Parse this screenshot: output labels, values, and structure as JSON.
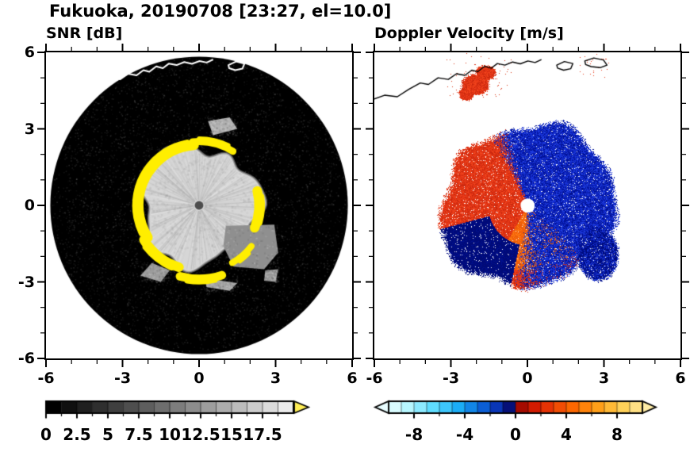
{
  "title": "Fukuoka, 20190708 [23:27, el=10.0]",
  "panels": {
    "snr": {
      "subtitle": "SNR [dB]"
    },
    "doppler": {
      "subtitle": "Doppler Velocity [m/s]"
    }
  },
  "axes": {
    "x_range": [
      -6,
      6
    ],
    "y_range": [
      -6,
      6
    ],
    "x_major_ticks": [
      -6,
      -3,
      0,
      3,
      6
    ],
    "y_major_ticks": [
      6,
      3,
      0,
      -3,
      -6
    ],
    "x_major_labels": [
      "-6",
      "-3",
      "0",
      "3",
      "6"
    ],
    "y_major_labels": [
      "6",
      "3",
      "0",
      "-3",
      "-6"
    ],
    "minor_tick_step": 1
  },
  "colorbars": {
    "snr": {
      "range": [
        0,
        20
      ],
      "segments": 16,
      "major_tick_values": [
        0,
        2.5,
        5,
        7.5,
        10,
        12.5,
        15,
        17.5
      ],
      "major_tick_labels": [
        "0",
        "2.5",
        "5",
        "7.5",
        "10",
        "12.5",
        "15",
        "17.5"
      ],
      "minor_tick_step": 1.25,
      "ramp": [
        "#000000",
        "#ebebeb"
      ],
      "over_arrow_color": "#ffee55"
    },
    "doppler": {
      "range": [
        -10,
        10
      ],
      "segments": 20,
      "major_tick_values": [
        -8,
        -4,
        0,
        4,
        8
      ],
      "major_tick_labels": [
        "-8",
        "-4",
        "0",
        "4",
        "8"
      ],
      "minor_tick_step": 2,
      "stops": [
        [
          0,
          "#eaffff"
        ],
        [
          0.08,
          "#b4f6ff"
        ],
        [
          0.18,
          "#5bdcff"
        ],
        [
          0.28,
          "#18aaf6"
        ],
        [
          0.37,
          "#0b62d8"
        ],
        [
          0.45,
          "#0a22a8"
        ],
        [
          0.497,
          "#03004e"
        ],
        [
          0.503,
          "#8c0600"
        ],
        [
          0.56,
          "#cd1400"
        ],
        [
          0.64,
          "#ea3a06"
        ],
        [
          0.74,
          "#ff6f00"
        ],
        [
          0.84,
          "#ffa81e"
        ],
        [
          0.93,
          "#ffd35c"
        ],
        [
          1,
          "#ffe79a"
        ]
      ],
      "under_arrow_color": "#e8fdff",
      "over_arrow_color": "#ffeda6"
    }
  },
  "chart_data": {
    "type": "heatmap",
    "subtype": "weather_radar_ppi_pair",
    "site": "Fukuoka",
    "date": "20190708",
    "time": "23:27",
    "elevation_deg": 10.0,
    "panels": [
      {
        "title": "SNR [dB]",
        "colormap": "grayscale 0-17.5 dB, yellow = over-range",
        "features": {
          "scan_disc_radius": 5.83,
          "background": "black (no echo / noise floor)",
          "echo_core": "light-gray disk, radius ~2.3, SNR ~12-17.5 dB",
          "saturated_ring": "yellow arcs at radius ~2.3-2.9 (SNR above scale max)",
          "secondary_echo": "medium-gray patch around (1.0..3.1, -2.5..-0.8)",
          "center_dot": "dark gray, radius ~0.17"
        }
      },
      {
        "title": "Doppler Velocity [m/s]",
        "colormap": "blue = negative, red = positive, range -10..10 m/s",
        "features": {
          "echo_radius": 3.3,
          "west_half": "red/orange, ~ +2 to +8 m/s",
          "east_half": "blue/navy, ~ -2 to -8 m/s",
          "southwest_outer": "dark navy lobe",
          "southeast_patch": "navy lobe near (2.7, -1.9)",
          "coastal_patch": "red echo near (-2.0, 4.8)",
          "center_dot": "white, radius ~0.27"
        }
      }
    ],
    "coastline": {
      "main": [
        [
          -6.2,
          4.1
        ],
        [
          -5.6,
          4.32
        ],
        [
          -5.1,
          4.26
        ],
        [
          -4.65,
          4.55
        ],
        [
          -4.2,
          4.8
        ],
        [
          -3.88,
          4.74
        ],
        [
          -3.5,
          5.0
        ],
        [
          -3.1,
          4.94
        ],
        [
          -2.78,
          5.16
        ],
        [
          -2.45,
          5.1
        ],
        [
          -2.18,
          5.3
        ],
        [
          -1.95,
          5.24
        ],
        [
          -1.68,
          5.45
        ],
        [
          -1.42,
          5.38
        ],
        [
          -1.18,
          5.56
        ],
        [
          -0.88,
          5.5
        ],
        [
          -0.58,
          5.62
        ],
        [
          -0.28,
          5.55
        ],
        [
          0.02,
          5.66
        ],
        [
          0.3,
          5.6
        ],
        [
          0.55,
          5.72
        ]
      ],
      "islands": [
        [
          [
            1.15,
            5.5
          ],
          [
            1.45,
            5.64
          ],
          [
            1.78,
            5.56
          ],
          [
            1.7,
            5.36
          ],
          [
            1.42,
            5.3
          ],
          [
            1.18,
            5.38
          ]
        ],
        [
          [
            2.25,
            5.66
          ],
          [
            2.6,
            5.78
          ],
          [
            2.98,
            5.7
          ],
          [
            3.12,
            5.5
          ],
          [
            2.85,
            5.4
          ],
          [
            2.5,
            5.44
          ],
          [
            2.28,
            5.52
          ]
        ]
      ]
    },
    "snr_render": {
      "yellow_arcs": [
        {
          "a0": 95,
          "a1": 212,
          "r": 2.38,
          "w": 13
        },
        {
          "a0": 212,
          "a1": 252,
          "r": 2.55,
          "w": 12
        },
        {
          "a0": 255,
          "a1": 288,
          "r": 2.88,
          "w": 11
        },
        {
          "a0": 58,
          "a1": 96,
          "r": 2.5,
          "w": 9
        },
        {
          "a0": -22,
          "a1": 14,
          "r": 2.35,
          "w": 12
        },
        {
          "a0": 300,
          "a1": 322,
          "r": 2.6,
          "w": 8
        }
      ],
      "gray_patches": [
        {
          "color": "#8f8f8f",
          "pts": [
            [
              1.05,
              -0.8
            ],
            [
              2.95,
              -0.75
            ],
            [
              3.1,
              -1.85
            ],
            [
              2.55,
              -2.5
            ],
            [
              1.35,
              -2.4
            ],
            [
              0.95,
              -1.6
            ]
          ]
        },
        {
          "color": "#9c9c9c",
          "pts": [
            [
              -1.85,
              -2.25
            ],
            [
              -1.15,
              -2.55
            ],
            [
              -1.5,
              -3.0
            ],
            [
              -2.3,
              -2.75
            ]
          ]
        },
        {
          "color": "#a8a8a8",
          "pts": [
            [
              0.2,
              -2.85
            ],
            [
              1.5,
              -3.05
            ],
            [
              1.2,
              -3.35
            ],
            [
              0.3,
              -3.2
            ]
          ]
        },
        {
          "color": "#9c9c9c",
          "pts": [
            [
              2.6,
              -2.55
            ],
            [
              3.1,
              -2.5
            ],
            [
              3.0,
              -3.0
            ],
            [
              2.55,
              -2.95
            ]
          ]
        },
        {
          "color": "#b2b2b2",
          "pts": [
            [
              0.55,
              2.75
            ],
            [
              1.5,
              3.0
            ],
            [
              1.2,
              3.45
            ],
            [
              0.35,
              3.3
            ]
          ]
        }
      ]
    },
    "doppler_render": {
      "blue_hues": [
        "#0a1db4",
        "#1530d8",
        "#001090",
        "#2242e0"
      ],
      "navy": "#000a78",
      "red_hues": [
        "#e83818",
        "#d92f12",
        "#f2461c",
        "#c8280e"
      ],
      "orange_hues": [
        "#f4600a",
        "#ff7d14",
        "#e85a08"
      ]
    }
  }
}
